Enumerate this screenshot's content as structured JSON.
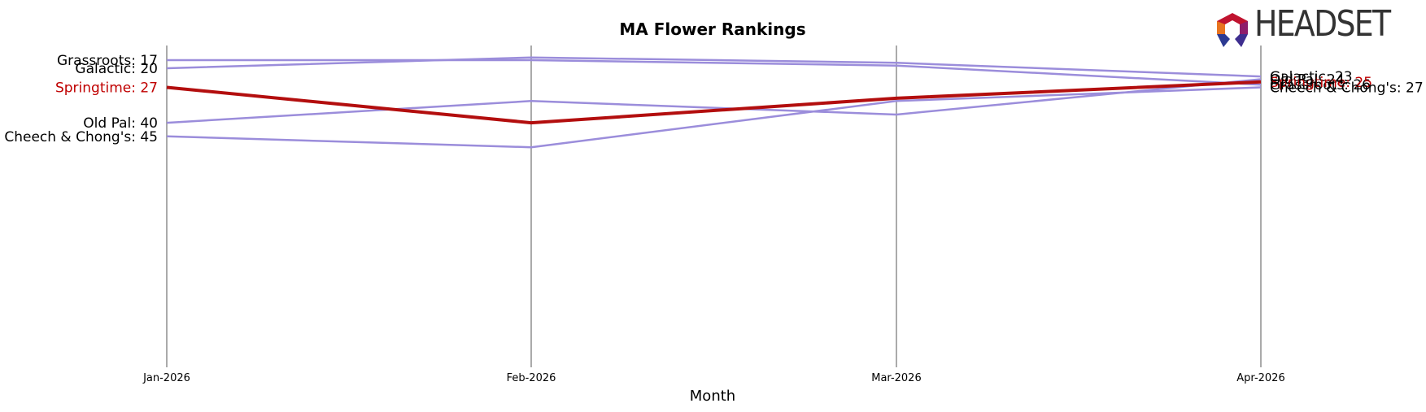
{
  "chart_data": {
    "type": "line",
    "title": "MA Flower Rankings",
    "xlabel": "Month",
    "ylabel": "",
    "categories": [
      "Jan-2026",
      "Feb-2026",
      "Mar-2026",
      "Apr-2026"
    ],
    "y_axis": "rank (inverted, not shown)",
    "grid": "vertical lines at each month",
    "highlight_brand": "Springtime",
    "series": [
      {
        "name": "Grassroots",
        "values": [
          17,
          17,
          19,
          26
        ],
        "left_label": "Grassroots: 17",
        "right_label": "Grassroots: 26"
      },
      {
        "name": "Galactic",
        "values": [
          20,
          16,
          18,
          23
        ],
        "left_label": "Galactic: 20",
        "right_label": "Galactic: 23"
      },
      {
        "name": "Springtime",
        "values": [
          27,
          40,
          31,
          25
        ],
        "left_label": "Springtime: 27",
        "right_label": "Springtime: 25"
      },
      {
        "name": "Old Pal",
        "values": [
          40,
          32,
          37,
          24
        ],
        "left_label": "Old Pal: 40",
        "right_label": "Old Pal: 24"
      },
      {
        "name": "Cheech & Chong's",
        "values": [
          45,
          49,
          32,
          27
        ],
        "left_label": "Cheech & Chong's: 45",
        "right_label": "Cheech & Chong's: 27"
      }
    ],
    "colors": {
      "default_line": "#9b8ddb",
      "highlight_line": "#b30e0e",
      "highlight_text": "#c00000",
      "text": "#000000",
      "gridline": "#aaaaaa"
    }
  },
  "logo": {
    "text": "HEADSET"
  }
}
